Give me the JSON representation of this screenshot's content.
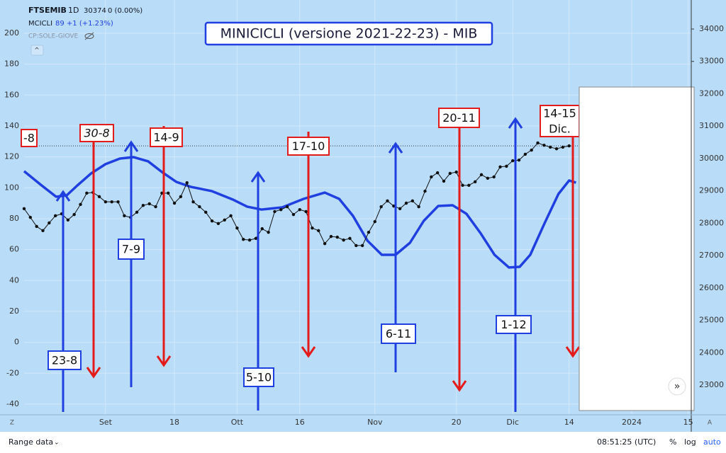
{
  "header": {
    "symbol": "FTSEMIB",
    "interval": "1D",
    "price": "30374",
    "change": "0 (0.00%)",
    "indicator": "MCICLI",
    "indicator_value": "89 +1 (+1.23%)",
    "study": "CP:SOLE-GIOVE"
  },
  "toolbar": {
    "range": "Range data",
    "clock": "08:51:25 (UTC)",
    "percent": "%",
    "log": "log",
    "auto": "auto",
    "left_corner": "Z",
    "right_corner": "A"
  },
  "chart_data": {
    "type": "line",
    "title": "MINICICLI (versione 2021-22-23) - MIB",
    "xlim": [
      -13,
      93.5
    ],
    "xticks": [
      {
        "value": 0,
        "label": "Set"
      },
      {
        "value": 11,
        "label": "18"
      },
      {
        "value": 21,
        "label": "Ott"
      },
      {
        "value": 31,
        "label": "16"
      },
      {
        "value": 43,
        "label": "Nov"
      },
      {
        "value": 56,
        "label": "20"
      },
      {
        "value": 65,
        "label": "Dic"
      },
      {
        "value": 74,
        "label": "14"
      },
      {
        "value": 84,
        "label": "2024"
      },
      {
        "value": 93,
        "label": "15"
      }
    ],
    "ylim": [
      -46.9,
      221.5
    ],
    "yticks": [
      -40,
      -20,
      0,
      20,
      40,
      60,
      80,
      100,
      120,
      140,
      160,
      180,
      200
    ],
    "y2lim": [
      22081,
      34897
    ],
    "y2ticks": [
      23000,
      24000,
      25000,
      26000,
      27000,
      28000,
      29000,
      30000,
      31000,
      32000,
      33000,
      34000
    ],
    "grid": true,
    "series": [
      {
        "name": "MCICLI",
        "color": "#1f3fe0",
        "axis": "y",
        "x": [
          -13,
          -10.2,
          -7.9,
          -6.2,
          -4.5,
          -2.3,
          0,
          2.3,
          4.5,
          6.8,
          9,
          11.3,
          13.6,
          17,
          20.3,
          22.6,
          24.9,
          28.2,
          31.6,
          35,
          37.3,
          39.5,
          41.8,
          44.1,
          46.3,
          48.6,
          50.8,
          53.1,
          55.4,
          57.6,
          59.9,
          62.1,
          64.4,
          66.1,
          67.8,
          70.1,
          72.3,
          74,
          75.1
        ],
        "values": [
          110.7,
          101.5,
          94.2,
          95.1,
          101.5,
          109.3,
          115.3,
          118.9,
          119.8,
          117.1,
          110.2,
          103.8,
          100.6,
          97.8,
          92.4,
          87.8,
          85.9,
          87.3,
          92.8,
          96.9,
          92.8,
          81.8,
          65.8,
          56.6,
          56.6,
          64.4,
          78.6,
          88.2,
          88.7,
          83.2,
          70.4,
          56.6,
          48.4,
          48.8,
          56.6,
          77.2,
          96,
          104.7,
          103.3
        ]
      },
      {
        "name": "FTSEMIB",
        "color": "#111111",
        "axis": "y2",
        "x": [
          -13,
          -12,
          -11,
          -10,
          -9,
          -8,
          -7,
          -6,
          -5,
          -4,
          -3,
          -2,
          -1,
          0,
          1,
          2,
          3,
          4,
          5,
          6,
          7,
          8,
          9,
          10,
          11,
          12,
          13,
          14,
          15,
          16,
          17,
          18,
          19,
          20,
          21,
          22,
          23,
          24,
          25,
          26,
          27,
          28,
          29,
          30,
          31,
          32,
          33,
          34,
          35,
          36,
          37,
          38,
          39,
          40,
          41,
          42,
          43,
          44,
          45,
          46,
          47,
          48,
          49,
          50,
          51,
          52,
          53,
          54,
          55,
          56,
          57,
          58,
          59,
          60,
          61,
          62,
          63,
          64,
          65,
          66,
          67,
          68,
          69,
          70,
          71,
          72,
          73,
          74
        ],
        "values": [
          28450,
          28180,
          27900,
          27770,
          28010,
          28230,
          28290,
          28100,
          28270,
          28580,
          28930,
          28950,
          28820,
          28660,
          28660,
          28660,
          28230,
          28180,
          28340,
          28550,
          28600,
          28510,
          28930,
          28930,
          28620,
          28820,
          29250,
          28660,
          28510,
          28340,
          28070,
          27990,
          28100,
          28230,
          27850,
          27500,
          27480,
          27530,
          27830,
          27720,
          28360,
          28420,
          28510,
          28270,
          28420,
          28360,
          27850,
          27770,
          27370,
          27590,
          27570,
          27480,
          27530,
          27310,
          27310,
          27720,
          28050,
          28510,
          28690,
          28530,
          28450,
          28620,
          28690,
          28510,
          28990,
          29430,
          29560,
          29300,
          29540,
          29580,
          29170,
          29170,
          29280,
          29500,
          29390,
          29430,
          29740,
          29760,
          29930,
          29950,
          30130,
          30260,
          30480,
          30410,
          30350,
          30300,
          30350,
          30390
        ]
      }
    ],
    "annotations": [
      {
        "text": [
          "-8"
        ],
        "color": "#e31b1b"
      },
      {
        "text": [
          "30-8"
        ],
        "color": "#e31b1b"
      },
      {
        "text": [
          "14-9"
        ],
        "color": "#e31b1b"
      },
      {
        "text": [
          "17-10"
        ],
        "color": "#e31b1b"
      },
      {
        "text": [
          "20-11"
        ],
        "color": "#e31b1b"
      },
      {
        "text": [
          "14-15",
          "Dic."
        ],
        "color": "#e31b1b"
      },
      {
        "text": [
          "23-8"
        ],
        "color": "#1f3fe0"
      },
      {
        "text": [
          "7-9"
        ],
        "color": "#1f3fe0"
      },
      {
        "text": [
          "5-10"
        ],
        "color": "#1f3fe0"
      },
      {
        "text": [
          "6-11"
        ],
        "color": "#1f3fe0"
      },
      {
        "text": [
          "1-12"
        ],
        "color": "#1f3fe0"
      }
    ]
  }
}
